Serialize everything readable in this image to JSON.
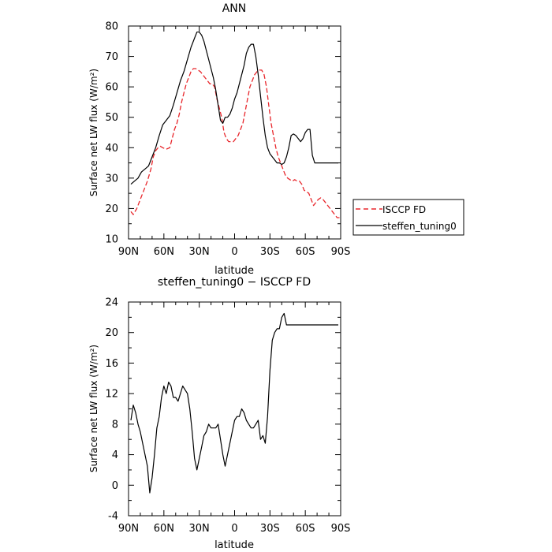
{
  "chart_data": [
    {
      "type": "line",
      "title": "ANN",
      "xlabel": "latitude",
      "ylabel": "Surface net LW flux (W/m²)",
      "xlim": [
        90,
        -90
      ],
      "ylim": [
        10,
        80
      ],
      "x_ticks": [
        90,
        60,
        30,
        0,
        -30,
        -60,
        -90
      ],
      "x_tick_labels": [
        "90N",
        "60N",
        "30N",
        "0",
        "30S",
        "60S",
        "90S"
      ],
      "y_ticks": [
        10,
        20,
        30,
        40,
        50,
        60,
        70,
        80
      ],
      "y_tick_labels": [
        "10",
        "20",
        "30",
        "40",
        "50",
        "60",
        "70",
        "80"
      ],
      "legend_position": "right",
      "series": [
        {
          "name": "ISCCP FD",
          "color": "#e8262b",
          "dash": "dashed",
          "x": [
            88,
            86,
            83,
            80,
            77,
            74,
            71,
            69,
            67,
            65,
            63,
            61,
            58,
            55,
            53,
            51,
            49,
            47,
            45,
            43,
            41,
            39,
            37,
            35,
            33,
            31,
            29,
            27,
            25,
            23,
            21,
            19,
            17,
            15,
            13,
            11,
            9,
            7,
            5,
            3,
            1,
            -1,
            -3,
            -5,
            -7,
            -9,
            -11,
            -13,
            -15,
            -17,
            -19,
            -21,
            -23,
            -25,
            -27,
            -29,
            -31,
            -33,
            -35,
            -37,
            -39,
            -41,
            -43,
            -45,
            -47,
            -49,
            -51,
            -53,
            -55,
            -57,
            -59,
            -61,
            -63,
            -65,
            -67,
            -69,
            -71,
            -73,
            -75,
            -77,
            -79,
            -81,
            -83,
            -85,
            -87,
            -89
          ],
          "y": [
            19,
            18,
            20,
            23,
            26,
            29,
            33,
            37,
            39,
            40,
            40.5,
            40,
            39.5,
            40,
            43,
            46,
            48,
            51,
            55,
            58,
            61,
            63,
            65,
            66,
            66,
            65.5,
            65,
            64,
            63,
            62,
            61,
            61,
            60,
            56,
            53,
            50,
            45,
            43,
            42,
            42,
            42,
            43,
            44,
            46,
            48,
            52,
            56,
            60,
            62,
            64,
            65,
            65.5,
            65.5,
            64,
            60,
            54,
            48,
            44,
            40,
            37,
            35,
            33,
            31,
            30,
            29.5,
            29,
            29.5,
            29,
            29,
            28,
            26,
            25.5,
            25,
            23,
            21,
            22,
            23,
            23.5,
            23,
            22,
            21,
            20,
            19,
            18,
            17,
            17
          ]
        },
        {
          "name": "steffen_tuning0",
          "color": "#000000",
          "dash": "solid",
          "x": [
            88,
            85,
            82,
            79,
            76,
            73,
            70,
            67,
            64,
            61,
            58,
            55,
            52,
            49,
            46,
            43,
            40,
            37,
            34,
            32,
            30,
            28,
            26,
            24,
            22,
            20,
            18,
            16,
            14,
            12,
            10,
            8,
            6,
            4,
            2,
            0,
            -2,
            -4,
            -6,
            -8,
            -10,
            -12,
            -14,
            -16,
            -18,
            -20,
            -22,
            -24,
            -26,
            -28,
            -30,
            -32,
            -34,
            -36,
            -38,
            -40,
            -42,
            -44,
            -46,
            -48,
            -50,
            -52,
            -54,
            -56,
            -58,
            -60,
            -62,
            -64,
            -66,
            -68,
            -70,
            -72,
            -74,
            -76,
            -78,
            -80,
            -82,
            -84,
            -86,
            -88
          ],
          "y": [
            28,
            29,
            30,
            32,
            33,
            34,
            37,
            40,
            44,
            47.5,
            49,
            50.5,
            54,
            58,
            62,
            65,
            69,
            73,
            76,
            78,
            78,
            77,
            75,
            72,
            69,
            66,
            63,
            59,
            54,
            49,
            48,
            50,
            50,
            51,
            53,
            56,
            58,
            61,
            64,
            67,
            71,
            73,
            74,
            74,
            70,
            64,
            57,
            50,
            44,
            40,
            38,
            37,
            36,
            35,
            35,
            34.5,
            35,
            37,
            40,
            44,
            44.5,
            44,
            43,
            42,
            43,
            45,
            46,
            46,
            37.5,
            35,
            35,
            35,
            35,
            35,
            35,
            35,
            35,
            35,
            35,
            35
          ]
        }
      ]
    },
    {
      "type": "line",
      "title": "steffen_tuning0 − ISCCP FD",
      "xlabel": "latitude",
      "ylabel": "Surface net LW flux (W/m²)",
      "xlim": [
        90,
        -90
      ],
      "ylim": [
        -4,
        24
      ],
      "x_ticks": [
        90,
        60,
        30,
        0,
        -30,
        -60,
        -90
      ],
      "x_tick_labels": [
        "90N",
        "60N",
        "30N",
        "0",
        "30S",
        "60S",
        "90S"
      ],
      "y_ticks": [
        -4,
        0,
        4,
        8,
        12,
        16,
        20,
        24
      ],
      "y_tick_labels": [
        "-4",
        "0",
        "4",
        "8",
        "12",
        "16",
        "20",
        "24"
      ],
      "series": [
        {
          "name": "steffen_tuning0 − ISCCP FD",
          "color": "#000000",
          "dash": "solid",
          "x": [
            88,
            86,
            84,
            82,
            80,
            78,
            76,
            74,
            72,
            70,
            68,
            66,
            64,
            62,
            60,
            58,
            56,
            54,
            52,
            50,
            48,
            46,
            44,
            42,
            40,
            38,
            36,
            34,
            32,
            30,
            28,
            26,
            24,
            22,
            20,
            18,
            16,
            14,
            12,
            10,
            8,
            6,
            4,
            2,
            0,
            -2,
            -4,
            -6,
            -8,
            -10,
            -12,
            -14,
            -16,
            -18,
            -20,
            -22,
            -24,
            -26,
            -28,
            -30,
            -32,
            -34,
            -36,
            -38,
            -40,
            -42,
            -44,
            -46,
            -48,
            -50,
            -52,
            -54,
            -56,
            -58,
            -60,
            -62,
            -64,
            -66,
            -68,
            -70,
            -72,
            -74,
            -76,
            -78,
            -80,
            -82,
            -84,
            -86,
            -88
          ],
          "y": [
            8.5,
            10.5,
            9.5,
            8,
            7,
            5.5,
            4,
            2.5,
            -1,
            1,
            4,
            7.5,
            9,
            11.5,
            13,
            12,
            13.5,
            13,
            11.5,
            11.5,
            11,
            12,
            13,
            12.5,
            12,
            10,
            7,
            3.5,
            2,
            3.5,
            5,
            6.5,
            7,
            8,
            7.5,
            7.5,
            7.5,
            8,
            6,
            4,
            2.5,
            4,
            5.5,
            7,
            8.5,
            9,
            9,
            10,
            9.5,
            8.5,
            8,
            7.5,
            7.5,
            8,
            8.5,
            6,
            6.5,
            5.5,
            9,
            15,
            19,
            20,
            20.5,
            20.5,
            22,
            22.5,
            21,
            21,
            21,
            21,
            21,
            21,
            21,
            21,
            21,
            21,
            21,
            21,
            21,
            21,
            21,
            21,
            21,
            21,
            21,
            21,
            21,
            21,
            21
          ]
        }
      ]
    }
  ]
}
